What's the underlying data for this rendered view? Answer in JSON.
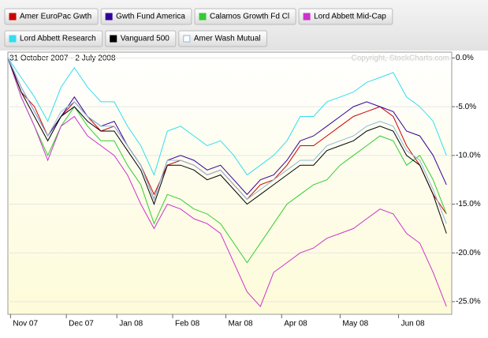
{
  "chart_data": {
    "type": "line",
    "subtitle": "31 October 2007 - 2 July 2008",
    "annotation": "Copyright, StockCharts.com",
    "x": [
      0,
      5,
      10,
      15,
      20,
      25,
      30,
      35,
      40,
      45,
      50,
      55,
      60,
      65,
      70,
      75,
      80,
      85,
      90,
      95,
      100,
      105,
      110,
      115,
      120,
      125,
      130,
      135,
      140,
      145,
      150,
      155,
      160,
      165
    ],
    "xlim": [
      0,
      167
    ],
    "xticks": [
      {
        "value": 1,
        "label": "Nov 07"
      },
      {
        "value": 22,
        "label": "Dec 07"
      },
      {
        "value": 41,
        "label": "Jan 08"
      },
      {
        "value": 62,
        "label": "Feb 08"
      },
      {
        "value": 82,
        "label": "Mar 08"
      },
      {
        "value": 103,
        "label": "Apr 08"
      },
      {
        "value": 125,
        "label": "May 08"
      },
      {
        "value": 147,
        "label": "Jun 08"
      }
    ],
    "ylim": [
      -26.3,
      0.6
    ],
    "yticks": [
      {
        "value": 0,
        "label": "0.0%"
      },
      {
        "value": -5,
        "label": "-5.0%"
      },
      {
        "value": -10,
        "label": "-10.0%"
      },
      {
        "value": -15,
        "label": "-15.0%"
      },
      {
        "value": -20,
        "label": "-20.0%"
      },
      {
        "value": -25,
        "label": "-25.0%"
      }
    ],
    "grid": true,
    "series": [
      {
        "name": "Amer EuroPac Gwth",
        "color": "#cc0000",
        "values": [
          0,
          -3.5,
          -5,
          -8,
          -6,
          -4.5,
          -6,
          -7.5,
          -7,
          -9,
          -11,
          -14,
          -11,
          -10.5,
          -11,
          -12,
          -11.5,
          -13,
          -14.5,
          -13,
          -12.5,
          -11,
          -9,
          -9,
          -8,
          -7,
          -6,
          -5.5,
          -5,
          -6,
          -9,
          -11,
          -14,
          -16
        ]
      },
      {
        "name": "Gwth Fund America",
        "color": "#330099",
        "values": [
          0,
          -3,
          -5.5,
          -8,
          -6,
          -4,
          -6,
          -7,
          -6.5,
          -9,
          -11,
          -14.5,
          -10.5,
          -10,
          -10.5,
          -11.5,
          -11,
          -12.5,
          -14,
          -12.5,
          -12,
          -10.5,
          -8.5,
          -8,
          -7,
          -6,
          -5,
          -4.5,
          -5,
          -5.5,
          -7.5,
          -8,
          -10,
          -13
        ]
      },
      {
        "name": "Calamos Growth Fd Cl",
        "color": "#33cc33",
        "values": [
          0,
          -4,
          -7,
          -10,
          -7,
          -5,
          -7,
          -8.5,
          -8.5,
          -11,
          -13,
          -17,
          -14,
          -14.5,
          -15.5,
          -16,
          -17,
          -19,
          -21,
          -19,
          -17,
          -15,
          -14,
          -13,
          -12.5,
          -11,
          -10,
          -9,
          -8,
          -8.5,
          -11,
          -10,
          -12.5,
          -16
        ]
      },
      {
        "name": "Lord Abbett Mid-Cap",
        "color": "#cc33cc",
        "values": [
          0,
          -4,
          -7,
          -10.5,
          -7,
          -6,
          -8,
          -9,
          -10,
          -12,
          -15,
          -17.5,
          -15,
          -15.5,
          -16.5,
          -17,
          -18,
          -21,
          -24,
          -25.5,
          -22,
          -21,
          -20,
          -19.5,
          -18.5,
          -18,
          -17.5,
          -16.5,
          -15.5,
          -16,
          -18,
          -19,
          -22,
          -25.5
        ]
      },
      {
        "name": "Lord Abbett Research",
        "color": "#33ddee",
        "values": [
          0,
          -2,
          -4,
          -6.5,
          -3,
          -1,
          -3,
          -4.5,
          -4.5,
          -7,
          -9,
          -12,
          -7.5,
          -7,
          -8,
          -9,
          -8.5,
          -10,
          -12,
          -11,
          -10,
          -8.5,
          -6,
          -6,
          -4.5,
          -4,
          -3.5,
          -2.5,
          -2,
          -1.5,
          -4,
          -5,
          -6.5,
          -10
        ]
      },
      {
        "name": "Vanguard 500",
        "color": "#000000",
        "values": [
          0,
          -3.5,
          -6,
          -8.5,
          -6,
          -5,
          -6.5,
          -7.5,
          -7.5,
          -9.5,
          -11.5,
          -15,
          -11,
          -11,
          -11.5,
          -12.5,
          -12,
          -13.5,
          -15,
          -14,
          -13,
          -12,
          -11,
          -11,
          -9.5,
          -9,
          -8.5,
          -7.5,
          -7,
          -7.5,
          -10,
          -11,
          -14,
          -18
        ]
      },
      {
        "name": "Amer Wash Mutual",
        "color": "#8fb8dc",
        "values": [
          0,
          -3,
          -5.5,
          -8,
          -5.5,
          -4.5,
          -6,
          -7,
          -7,
          -9,
          -11,
          -14.5,
          -10.5,
          -10.5,
          -11,
          -12,
          -11.5,
          -13,
          -14.5,
          -13.5,
          -12.5,
          -11.5,
          -10.5,
          -10.5,
          -9,
          -8.5,
          -8,
          -7,
          -6.5,
          -7,
          -9.5,
          -10.5,
          -13.5,
          -17
        ]
      }
    ]
  }
}
